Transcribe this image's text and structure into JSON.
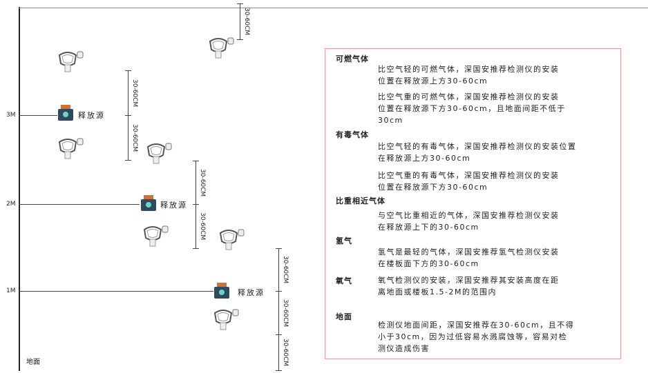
{
  "levels": {
    "l3": "3M",
    "l2": "2M",
    "l1": "1M",
    "ground": "地面"
  },
  "dimension_label": "30-60CM",
  "source_label": "释放源",
  "colors": {
    "panel_border": "#e99a9a",
    "source_icon": "#2f4a5a",
    "source_cap": "#c8743a"
  },
  "panel": {
    "combustible": {
      "title": "可燃气体",
      "light": [
        "比空气轻的可燃气体，深国安推荐检测仪的安装",
        "位置在释放源上方30-60cm"
      ],
      "heavy": [
        "比空气重的可燃气体，深国安推荐检测仪的安装",
        "位置在释放源下方30-60cm，且地面间距不低于",
        "30cm"
      ]
    },
    "toxic": {
      "title": "有毒气体",
      "light": [
        "比空气轻的有毒气体，深国安推荐检测仪的安装位置",
        "在释放源上方30-60cm"
      ],
      "heavy": [
        "比空气重的有毒气体，深国安推荐检测仪的安装",
        "位置在释放源下方30-60cm"
      ]
    },
    "similar": {
      "title": "比重相近气体",
      "text": [
        "与空气比重相近的气体，深国安推荐检测仪安装",
        "在释放源上下的30-60cm"
      ]
    },
    "hydrogen": {
      "title": "氢气",
      "text": [
        "氢气是最轻的气体，深国安推荐氢气检测仪安装",
        "在楼板面下方的30-60cm"
      ]
    },
    "oxygen": {
      "title": "氧气",
      "text": [
        "氧气检测仪的安装，深国安推荐其安装高度在距",
        "离地面或楼板1.5-2M的范围内"
      ]
    },
    "ground": {
      "title": "地面",
      "text": [
        "检测仪地面间距，深国安推荐在30-60cm，且不得",
        "小于30cm，因为过低容易水溅腐蚀等，容易对检",
        "测仪造成伤害"
      ]
    }
  }
}
